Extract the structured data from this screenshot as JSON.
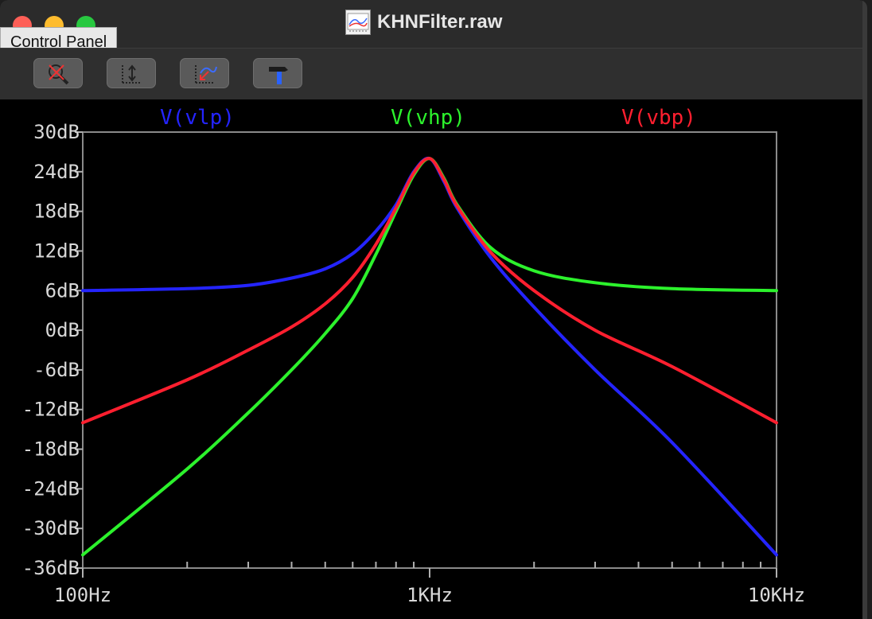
{
  "window": {
    "title": "KHNFilter.raw",
    "icon": "waveform-doc-icon"
  },
  "tooltip": {
    "text": "Control Panel"
  },
  "toolbar": {
    "buttons": [
      {
        "icon": "zoom-cancel-icon"
      },
      {
        "icon": "autorange-icon"
      },
      {
        "icon": "zoom-back-icon"
      },
      {
        "icon": "control-panel-hammer-icon"
      }
    ]
  },
  "colors": {
    "vlp": "#2424ff",
    "vhp": "#2cf22c",
    "vbp": "#ff1f2f"
  },
  "chart_data": {
    "type": "line",
    "title": "",
    "xscale": "log",
    "xlim": [
      100,
      10000
    ],
    "ylim": [
      -36,
      30
    ],
    "x_ticks": [
      {
        "value": 100,
        "label": "100Hz"
      },
      {
        "value": 1000,
        "label": "1KHz"
      },
      {
        "value": 10000,
        "label": "10KHz"
      }
    ],
    "y_ticks": [
      {
        "value": 30,
        "label": "30dB"
      },
      {
        "value": 24,
        "label": "24dB"
      },
      {
        "value": 18,
        "label": "18dB"
      },
      {
        "value": 12,
        "label": "12dB"
      },
      {
        "value": 6,
        "label": "6dB"
      },
      {
        "value": 0,
        "label": "0dB"
      },
      {
        "value": -6,
        "label": "-6dB"
      },
      {
        "value": -12,
        "label": "-12dB"
      },
      {
        "value": -18,
        "label": "-18dB"
      },
      {
        "value": -24,
        "label": "-24dB"
      },
      {
        "value": -30,
        "label": "-30dB"
      },
      {
        "value": -36,
        "label": "-36dB"
      }
    ],
    "series": [
      {
        "name": "V(vlp)",
        "color": "#2424ff",
        "x": [
          100,
          200,
          300,
          400,
          500,
          600,
          700,
          800,
          900,
          1000,
          1100,
          1200,
          1500,
          2000,
          3000,
          5000,
          10000
        ],
        "y": [
          6.0,
          6.3,
          6.8,
          7.9,
          9.3,
          11.6,
          15.0,
          19.0,
          24.0,
          26.0,
          22.5,
          18.5,
          11.0,
          3.5,
          -6.0,
          -17.0,
          -34.0
        ]
      },
      {
        "name": "V(vhp)",
        "color": "#2cf22c",
        "x": [
          100,
          200,
          300,
          400,
          500,
          600,
          700,
          800,
          900,
          1000,
          1100,
          1200,
          1500,
          2000,
          3000,
          5000,
          10000
        ],
        "y": [
          -34.0,
          -21.0,
          -12.5,
          -6.0,
          -0.5,
          4.8,
          11.5,
          18.0,
          23.5,
          26.0,
          23.0,
          19.0,
          12.5,
          9.0,
          7.2,
          6.3,
          6.0
        ]
      },
      {
        "name": "V(vbp)",
        "color": "#ff1f2f",
        "x": [
          100,
          200,
          300,
          400,
          500,
          600,
          700,
          800,
          900,
          1000,
          1100,
          1200,
          1500,
          2000,
          3000,
          5000,
          10000
        ],
        "y": [
          -14.0,
          -7.5,
          -3.0,
          0.5,
          4.0,
          8.0,
          13.0,
          18.5,
          23.8,
          26.0,
          22.8,
          18.8,
          11.8,
          6.0,
          0.0,
          -5.5,
          -14.0
        ]
      }
    ]
  }
}
